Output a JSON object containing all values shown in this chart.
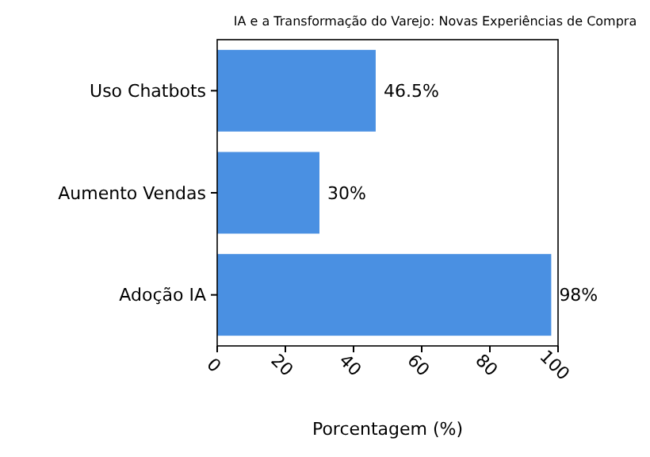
{
  "chart_data": {
    "type": "bar",
    "orientation": "horizontal",
    "title": "IA e a Transformação do Varejo: Novas Experiências de Compra",
    "xlabel": "Porcentagem (%)",
    "categories": [
      "Uso Chatbots",
      "Aumento Vendas",
      "Adoção IA"
    ],
    "values": [
      46.5,
      30,
      98
    ],
    "color": "#4a90e2",
    "value_labels": [
      "46.5%",
      "30%",
      "98%"
    ],
    "xlim": [
      0,
      100
    ],
    "xticks": [
      0,
      20,
      40,
      60,
      80,
      100
    ],
    "grid": false
  }
}
